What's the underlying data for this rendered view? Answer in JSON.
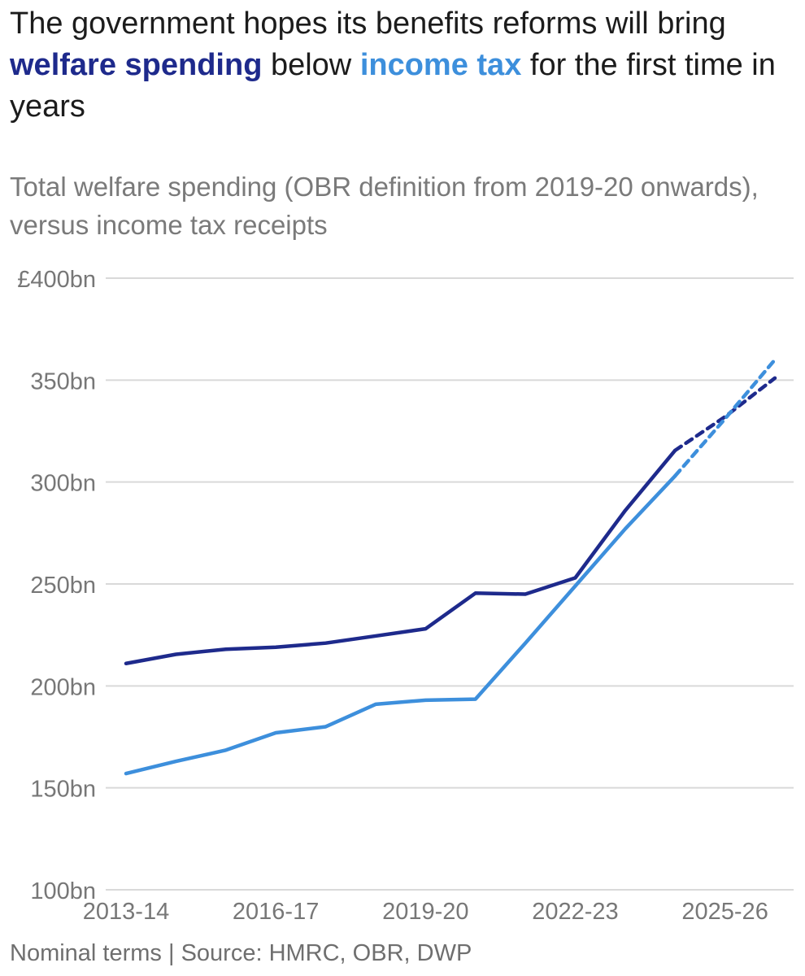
{
  "header": {
    "title_part1": "The government hopes its benefits reforms will bring ",
    "title_welfare": "welfare spending",
    "title_part2": " below ",
    "title_income": "income tax",
    "title_part3": " for the first time in years",
    "subtitle": "Total welfare spending (OBR definition from 2019-20 onwards), versus income tax receipts"
  },
  "footer": {
    "note": "Nominal terms | Source: HMRC, OBR, DWP"
  },
  "colors": {
    "welfare": "#1e2a8c",
    "income_tax": "#3d8fdc",
    "grid": "#d9d9d9",
    "axis_text": "#777777"
  },
  "chart_data": {
    "type": "line",
    "title": "The government hopes its benefits reforms will bring welfare spending below income tax for the first time in years",
    "subtitle": "Total welfare spending (OBR definition from 2019-20 onwards), versus income tax receipts",
    "xlabel": "",
    "ylabel": "",
    "x": [
      "2013-14",
      "2014-15",
      "2015-16",
      "2016-17",
      "2017-18",
      "2018-19",
      "2019-20",
      "2020-21",
      "2021-22",
      "2022-23",
      "2023-24",
      "2024-25",
      "2025-26",
      "2026-27"
    ],
    "x_tick_labels": [
      "2013-14",
      "2016-17",
      "2019-20",
      "2022-23",
      "2025-26"
    ],
    "y_ticks": [
      100,
      150,
      200,
      250,
      300,
      350,
      400
    ],
    "y_tick_labels": [
      "100bn",
      "150bn",
      "200bn",
      "250bn",
      "300bn",
      "350bn",
      "£400bn"
    ],
    "ylim": [
      100,
      400
    ],
    "grid": true,
    "legend": "inline in title",
    "series": [
      {
        "name": "welfare spending",
        "color_key": "welfare",
        "values": [
          211,
          215.5,
          218,
          219,
          221,
          224.5,
          228,
          245.5,
          245,
          253,
          286,
          315.5,
          332,
          351
        ],
        "projection_from_index": 11
      },
      {
        "name": "income tax",
        "color_key": "income_tax",
        "values": [
          157,
          163,
          168.5,
          177,
          180,
          191,
          193,
          193.5,
          221,
          249,
          277,
          303,
          331,
          360
        ],
        "projection_from_index": 11
      }
    ]
  }
}
